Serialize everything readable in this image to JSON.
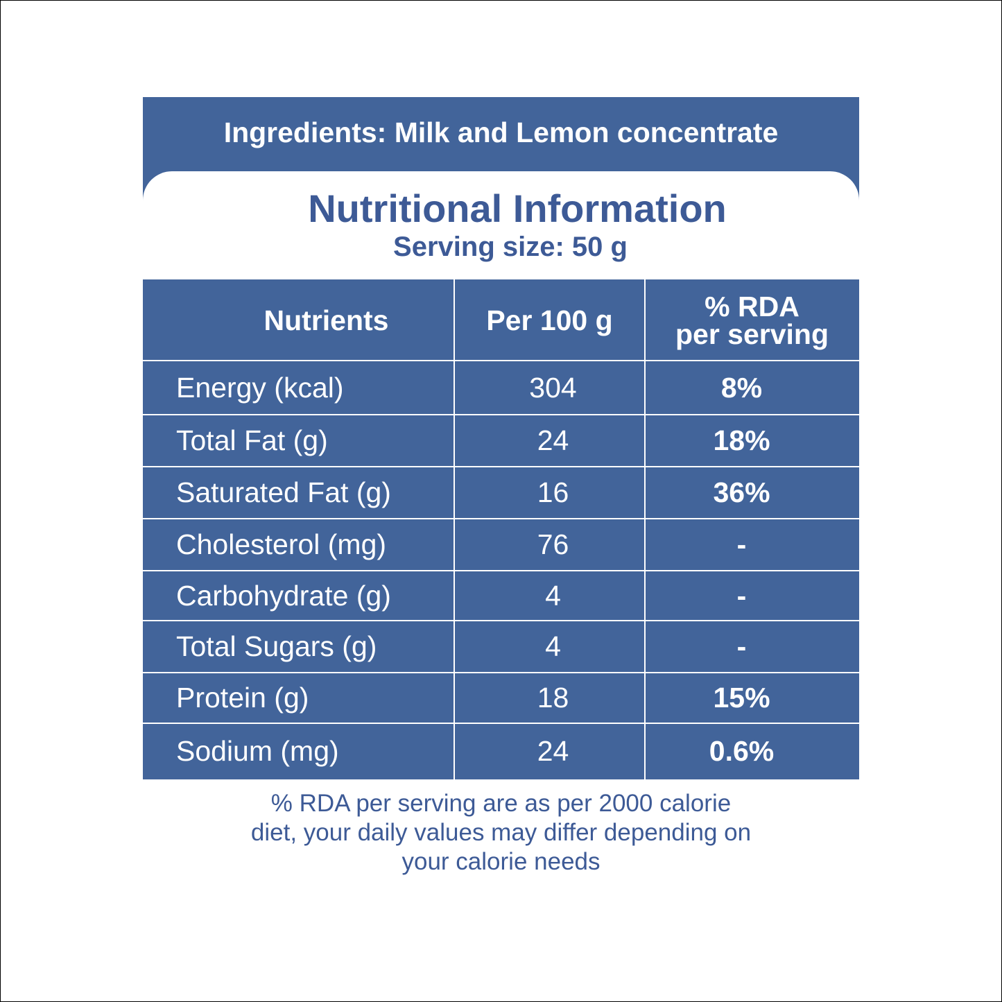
{
  "header": {
    "ingredients": "Ingredients: Milk and Lemon concentrate",
    "title": "Nutritional Information",
    "serving_size": "Serving size: 50 g"
  },
  "table": {
    "headers": [
      "Nutrients",
      "Per 100 g",
      [
        "% RDA",
        "per serving"
      ]
    ],
    "rows": [
      [
        "Energy (kcal)",
        "304",
        "8%"
      ],
      [
        "Total Fat (g)",
        "24",
        "18%"
      ],
      [
        "Saturated Fat (g)",
        "16",
        "36%"
      ],
      [
        "Cholesterol (mg)",
        "76",
        "-"
      ],
      [
        "Carbohydrate (g)",
        "4",
        "-"
      ],
      [
        "Total Sugars (g)",
        "4",
        "-"
      ],
      [
        "Protein (g)",
        "18",
        "15%"
      ],
      [
        "Sodium (mg)",
        "24",
        "0.6%"
      ]
    ]
  },
  "footnote": [
    "% RDA per serving are as per 2000 calorie",
    "diet, your daily values may differ depending on",
    "your calorie needs"
  ]
}
